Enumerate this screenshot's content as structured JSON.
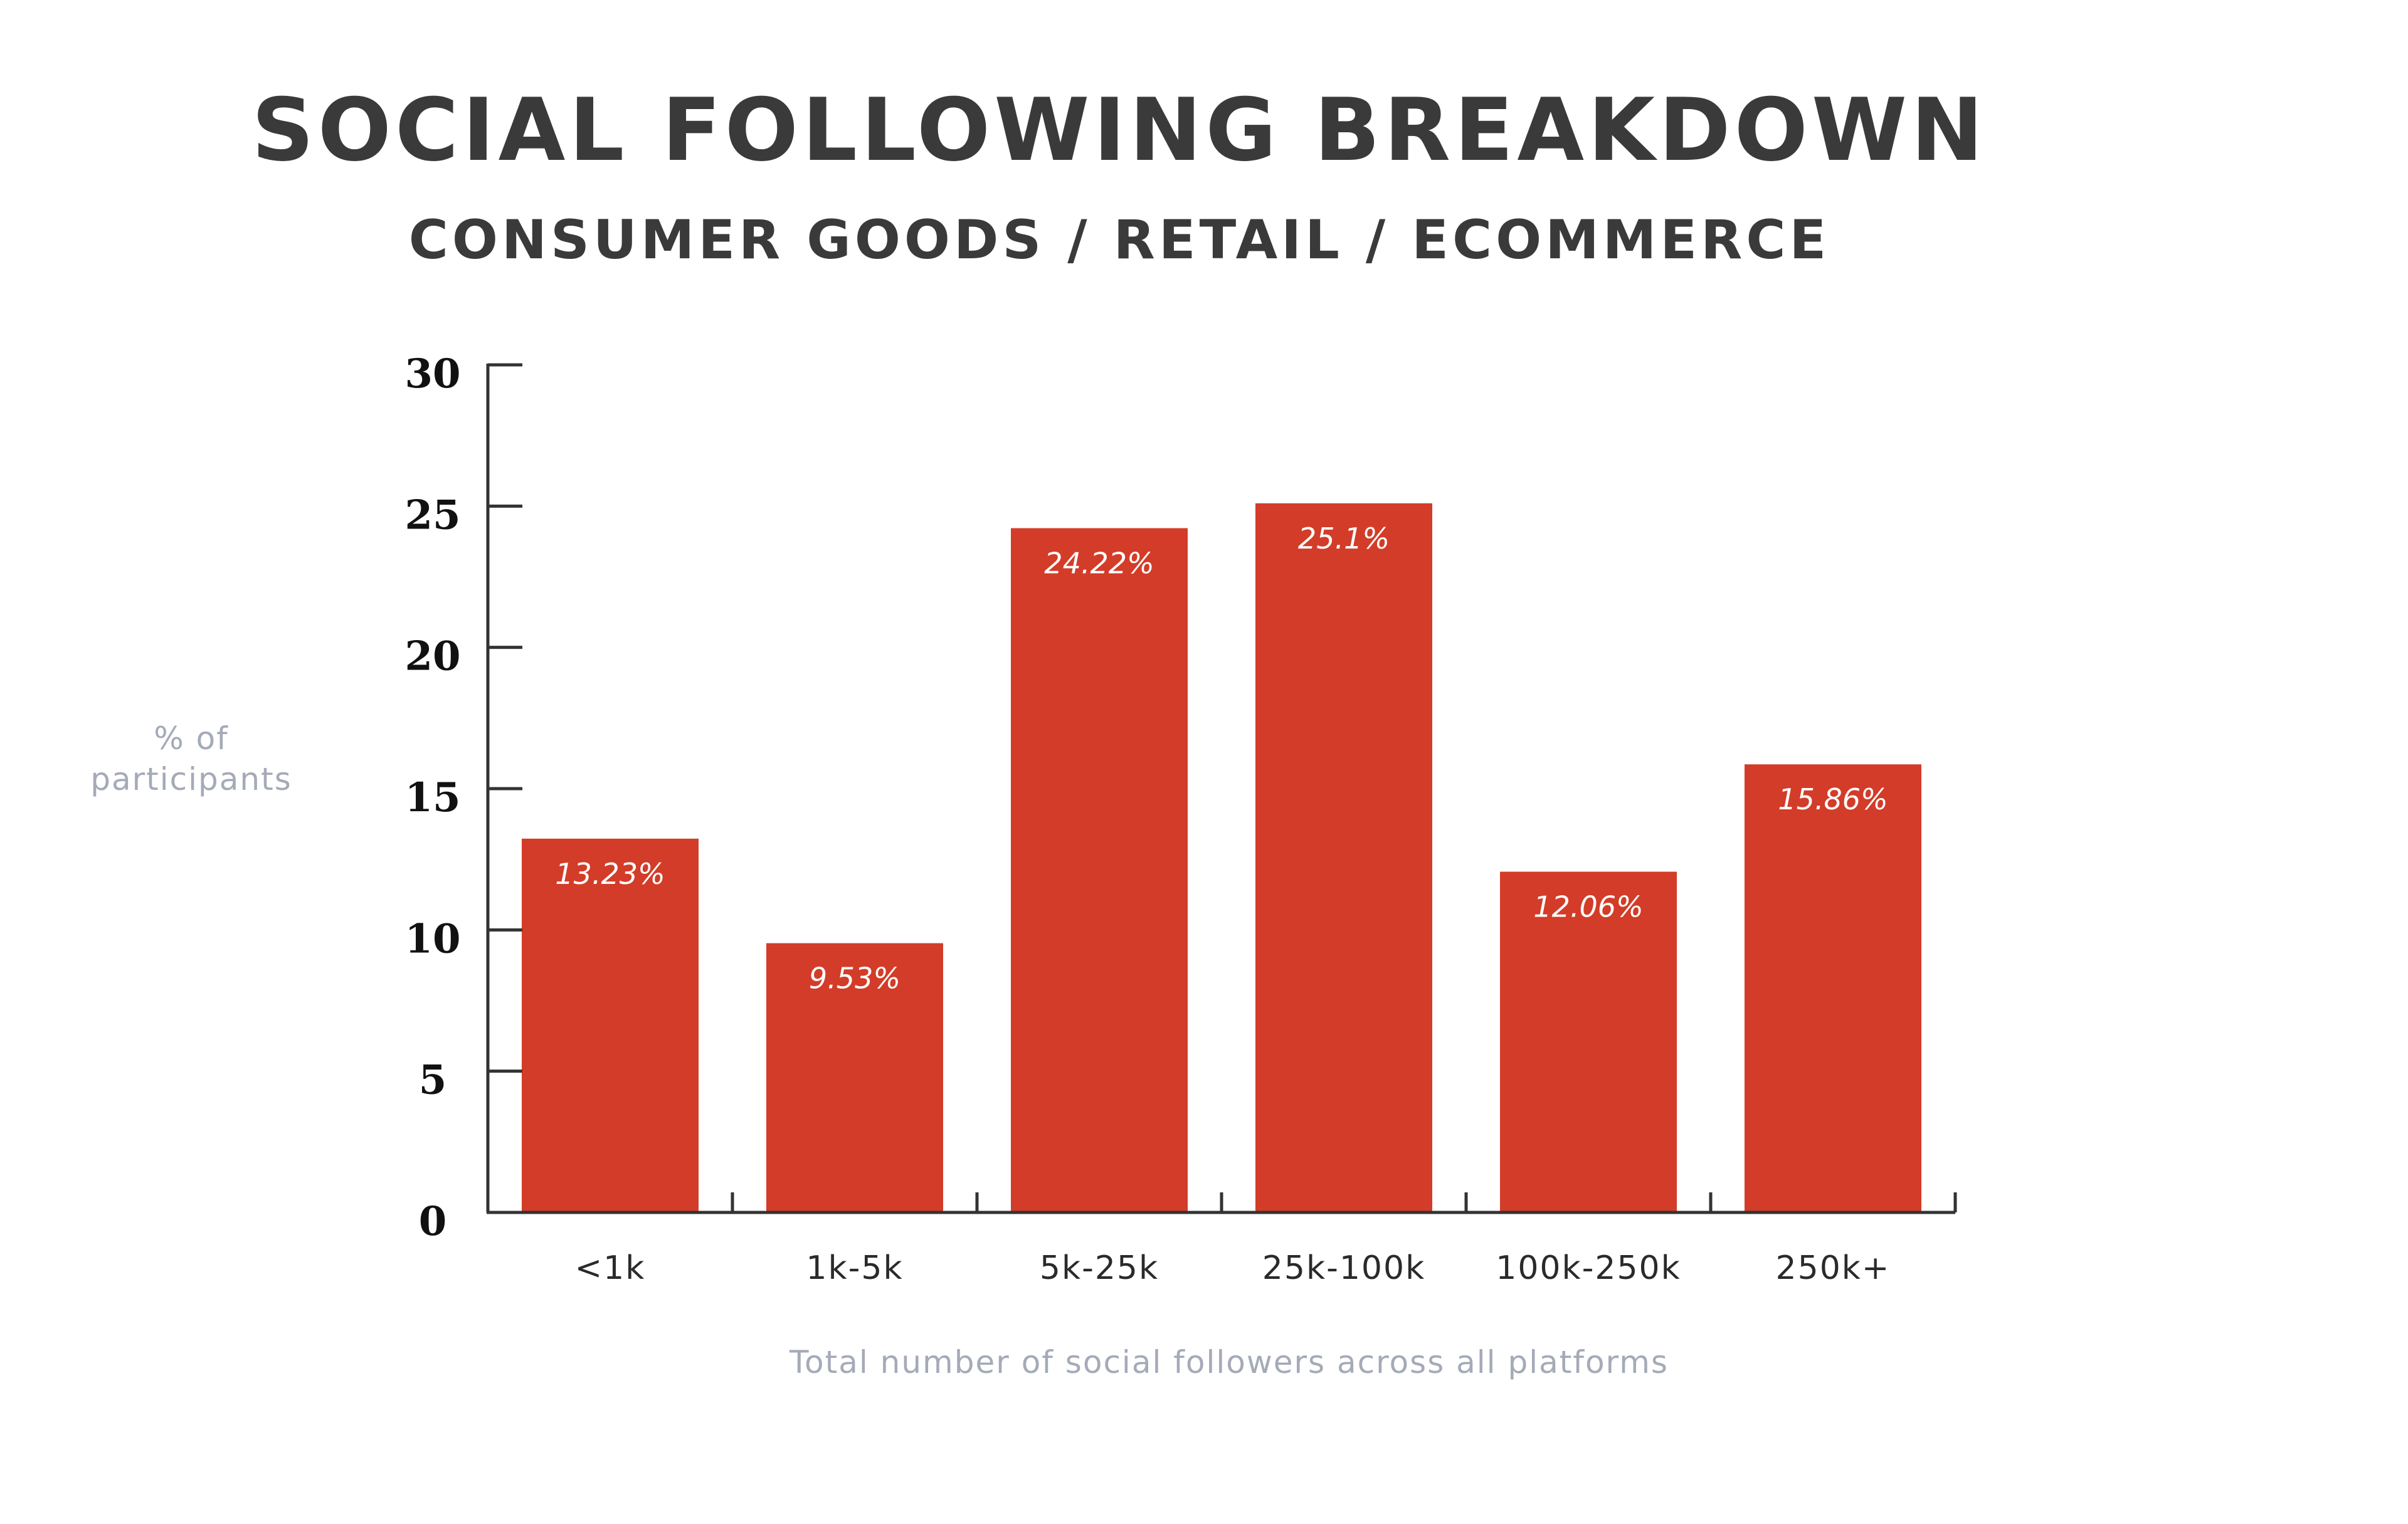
{
  "colors": {
    "bar": "#d33c28",
    "axis": "#333333",
    "title": "#3a3a3a",
    "muted_label": "#a4aab8",
    "bar_label": "#ffffff"
  },
  "chart_data": {
    "type": "bar",
    "title": "SOCIAL FOLLOWING BREAKDOWN",
    "subtitle": "CONSUMER GOODS / RETAIL / ECOMMERCE",
    "ylabel_lines": [
      "% of",
      "participants"
    ],
    "xlabel": "Total number of social followers across all platforms",
    "categories": [
      "<1k",
      "1k-5k",
      "5k-25k",
      "25k-100k",
      "100k-250k",
      "250k+"
    ],
    "values": [
      13.23,
      9.53,
      24.22,
      25.1,
      12.06,
      15.86
    ],
    "value_labels": [
      "13.23%",
      "9.53%",
      "24.22%",
      "25.1%",
      "12.06%",
      "15.86%"
    ],
    "ylim": [
      0,
      30
    ],
    "yticks": [
      0,
      5,
      10,
      15,
      20,
      25,
      30
    ],
    "grid": false,
    "legend": "none"
  }
}
